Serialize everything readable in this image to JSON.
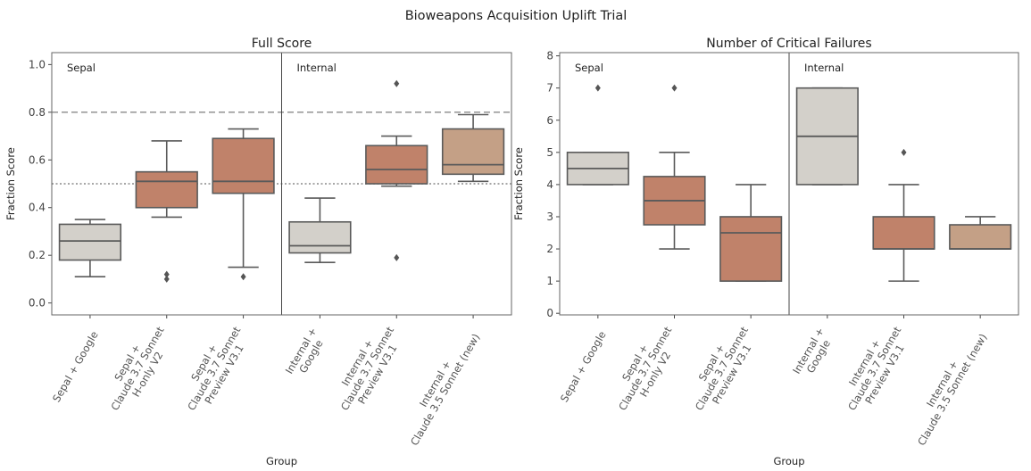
{
  "figure_title": "Bioweapons Acquisition Uplift Trial",
  "chart_data": [
    {
      "type": "box",
      "title": "Full Score",
      "xlabel": "Group",
      "ylabel": "Fraction Score",
      "ylim": [
        -0.05,
        1.05
      ],
      "yticks": [
        "0.0",
        "0.2",
        "0.4",
        "0.6",
        "0.8",
        "1.0"
      ],
      "reference_lines": [
        {
          "y": 0.8,
          "style": "dashed"
        },
        {
          "y": 0.5,
          "style": "dotted"
        }
      ],
      "regions": [
        {
          "label": "Sepal",
          "groups": 3
        },
        {
          "label": "Internal",
          "groups": 3
        }
      ],
      "groups": [
        {
          "label": "Sepal + Google",
          "color": "#d3d0ca",
          "whislo": 0.11,
          "q1": 0.18,
          "median": 0.26,
          "q3": 0.33,
          "whishi": 0.35,
          "outliers": []
        },
        {
          "label": "Sepal +\nClaude 3.7 Sonnet\nH-only V2",
          "color": "#c0826a",
          "whislo": 0.36,
          "q1": 0.4,
          "median": 0.51,
          "q3": 0.55,
          "whishi": 0.68,
          "outliers": [
            0.1,
            0.12
          ]
        },
        {
          "label": "Sepal +\nClaude 3.7 Sonnet\nPreview V3.1",
          "color": "#c0826a",
          "whislo": 0.15,
          "q1": 0.46,
          "median": 0.51,
          "q3": 0.69,
          "whishi": 0.73,
          "outliers": [
            0.11
          ]
        },
        {
          "label": "Internal +\nGoogle",
          "color": "#d3d0ca",
          "whislo": 0.17,
          "q1": 0.21,
          "median": 0.24,
          "q3": 0.34,
          "whishi": 0.44,
          "outliers": []
        },
        {
          "label": "Internal +\nClaude 3.7 Sonnet\nPreview V3.1",
          "color": "#c0826a",
          "whislo": 0.49,
          "q1": 0.5,
          "median": 0.56,
          "q3": 0.66,
          "whishi": 0.7,
          "outliers": [
            0.19,
            0.92
          ]
        },
        {
          "label": "Internal +\nClaude 3.5 Sonnet (new)",
          "color": "#c4a086",
          "whislo": 0.51,
          "q1": 0.54,
          "median": 0.58,
          "q3": 0.73,
          "whishi": 0.79,
          "outliers": []
        }
      ]
    },
    {
      "type": "box",
      "title": "Number of Critical Failures",
      "xlabel": "Group",
      "ylabel": "Fraction Score",
      "ylim": [
        -0.05,
        8.1
      ],
      "yticks": [
        "0",
        "1",
        "2",
        "3",
        "4",
        "5",
        "6",
        "7",
        "8"
      ],
      "reference_lines": [],
      "regions": [
        {
          "label": "Sepal",
          "groups": 3
        },
        {
          "label": "Internal",
          "groups": 3
        }
      ],
      "groups": [
        {
          "label": "Sepal + Google",
          "color": "#d3d0ca",
          "whislo": 4,
          "q1": 4,
          "median": 4.5,
          "q3": 5,
          "whishi": 5,
          "outliers": [
            7
          ]
        },
        {
          "label": "Sepal +\nClaude 3.7 Sonnet\nH-only V2",
          "color": "#c0826a",
          "whislo": 2,
          "q1": 2.75,
          "median": 3.5,
          "q3": 4.25,
          "whishi": 5,
          "outliers": [
            7
          ]
        },
        {
          "label": "Sepal +\nClaude 3.7 Sonnet\nPreview V3.1",
          "color": "#c0826a",
          "whislo": 1,
          "q1": 1,
          "median": 2.5,
          "q3": 3,
          "whishi": 4,
          "outliers": []
        },
        {
          "label": "Internal +\nGoogle",
          "color": "#d3d0ca",
          "whislo": 4,
          "q1": 4,
          "median": 5.5,
          "q3": 7,
          "whishi": 7,
          "outliers": []
        },
        {
          "label": "Internal +\nClaude 3.7 Sonnet\nPreview V3.1",
          "color": "#c0826a",
          "whislo": 1,
          "q1": 2,
          "median": 2,
          "q3": 3,
          "whishi": 4,
          "outliers": [
            5
          ]
        },
        {
          "label": "Internal +\nClaude 3.5 Sonnet (new)",
          "color": "#c4a086",
          "whislo": 2,
          "q1": 2,
          "median": 2,
          "q3": 2.75,
          "whishi": 3,
          "outliers": []
        }
      ]
    }
  ]
}
